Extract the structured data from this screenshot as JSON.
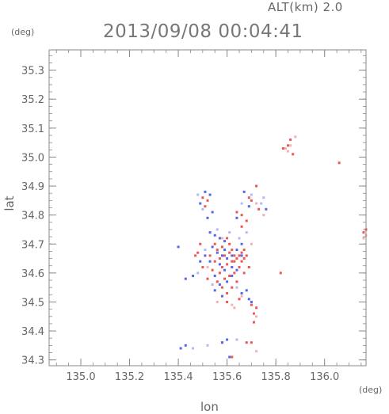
{
  "header": {
    "altitude_label": "ALT(km) 2.0",
    "datetime": "2013/09/08 00:04:41"
  },
  "chart_data": {
    "type": "scatter",
    "title": "2013/09/08 00:04:41",
    "subtitle": "ALT(km) 2.0",
    "xlabel": "lon",
    "ylabel": "lat",
    "x_unit": "(deg)",
    "y_unit": "(deg)",
    "xlim": [
      134.87,
      136.17
    ],
    "ylim": [
      34.28,
      35.37
    ],
    "x_ticks": [
      135.0,
      135.2,
      135.4,
      135.6,
      135.8,
      136.0
    ],
    "x_tick_labels": [
      "135.0",
      "135.2",
      "135.4",
      "135.6",
      "135.8",
      "136.0"
    ],
    "y_ticks": [
      34.3,
      34.4,
      34.5,
      34.6,
      34.7,
      34.8,
      34.9,
      35.0,
      35.1,
      35.2,
      35.3
    ],
    "y_tick_labels": [
      "34.3",
      "34.4",
      "34.5",
      "34.6",
      "34.7",
      "34.8",
      "34.9",
      "35.0",
      "35.1",
      "35.2",
      "35.3"
    ],
    "grid": false,
    "colors": {
      "positive": "#ee5555",
      "positive_light": "#f5b0b0",
      "negative": "#5566ee",
      "negative_light": "#b5b8f5",
      "axis": "#888888"
    },
    "series": [
      {
        "color": "#ee5555",
        "points": [
          [
            135.83,
            35.03
          ],
          [
            135.85,
            35.04
          ],
          [
            135.86,
            35.06
          ],
          [
            135.87,
            35.01
          ],
          [
            136.06,
            34.98
          ],
          [
            135.72,
            34.9
          ],
          [
            135.69,
            34.86
          ],
          [
            135.7,
            34.85
          ],
          [
            135.73,
            34.82
          ],
          [
            135.66,
            34.8
          ],
          [
            135.64,
            34.81
          ],
          [
            135.68,
            34.78
          ],
          [
            135.66,
            34.76
          ],
          [
            135.5,
            34.86
          ],
          [
            135.52,
            34.85
          ],
          [
            135.51,
            34.83
          ],
          [
            135.49,
            34.7
          ],
          [
            135.55,
            34.7
          ],
          [
            135.56,
            34.68
          ],
          [
            135.58,
            34.69
          ],
          [
            135.6,
            34.72
          ],
          [
            135.61,
            34.7
          ],
          [
            135.62,
            34.68
          ],
          [
            135.63,
            34.66
          ],
          [
            135.64,
            34.65
          ],
          [
            135.65,
            34.66
          ],
          [
            135.66,
            34.67
          ],
          [
            135.67,
            34.68
          ],
          [
            135.68,
            34.66
          ],
          [
            135.62,
            34.64
          ],
          [
            135.6,
            34.63
          ],
          [
            135.58,
            34.62
          ],
          [
            135.57,
            34.6
          ],
          [
            135.59,
            34.58
          ],
          [
            135.61,
            34.59
          ],
          [
            135.63,
            34.6
          ],
          [
            135.65,
            34.62
          ],
          [
            135.66,
            34.64
          ],
          [
            135.55,
            34.64
          ],
          [
            135.53,
            34.66
          ],
          [
            135.54,
            34.61
          ],
          [
            135.56,
            34.57
          ],
          [
            135.58,
            34.55
          ],
          [
            135.6,
            34.53
          ],
          [
            135.62,
            34.55
          ],
          [
            135.64,
            34.57
          ],
          [
            135.67,
            34.6
          ],
          [
            135.69,
            34.62
          ],
          [
            135.5,
            34.62
          ],
          [
            135.52,
            34.58
          ],
          [
            135.6,
            34.5
          ],
          [
            135.65,
            34.51
          ],
          [
            135.7,
            34.49
          ],
          [
            135.72,
            34.48
          ],
          [
            135.71,
            34.46
          ],
          [
            135.71,
            34.43
          ],
          [
            135.7,
            34.36
          ],
          [
            135.68,
            34.36
          ],
          [
            135.58,
            34.36
          ],
          [
            135.62,
            34.31
          ],
          [
            135.82,
            34.6
          ],
          [
            135.47,
            34.66
          ],
          [
            135.48,
            34.67
          ],
          [
            135.57,
            34.65
          ],
          [
            135.59,
            34.66
          ],
          [
            135.61,
            34.67
          ],
          [
            135.63,
            34.64
          ],
          [
            135.67,
            34.65
          ],
          [
            136.16,
            34.74
          ],
          [
            136.17,
            34.75
          ]
        ]
      },
      {
        "color": "#f5b0b0",
        "points": [
          [
            135.85,
            35.02
          ],
          [
            135.84,
            35.03
          ],
          [
            135.86,
            35.04
          ],
          [
            135.88,
            35.07
          ],
          [
            136.16,
            34.72
          ],
          [
            136.17,
            34.73
          ],
          [
            135.75,
            34.8
          ],
          [
            135.72,
            34.84
          ],
          [
            135.52,
            34.62
          ],
          [
            135.56,
            34.5
          ],
          [
            135.62,
            34.49
          ],
          [
            135.63,
            34.48
          ],
          [
            135.72,
            34.45
          ],
          [
            135.72,
            34.33
          ],
          [
            135.66,
            34.52
          ],
          [
            135.58,
            34.72
          ],
          [
            135.7,
            34.7
          ]
        ]
      },
      {
        "color": "#5566ee",
        "points": [
          [
            135.51,
            34.88
          ],
          [
            135.53,
            34.87
          ],
          [
            135.49,
            34.84
          ],
          [
            135.54,
            34.81
          ],
          [
            135.52,
            34.79
          ],
          [
            135.67,
            34.88
          ],
          [
            135.69,
            34.83
          ],
          [
            135.76,
            34.82
          ],
          [
            135.64,
            34.79
          ],
          [
            135.53,
            34.74
          ],
          [
            135.55,
            34.73
          ],
          [
            135.57,
            34.72
          ],
          [
            135.59,
            34.71
          ],
          [
            135.54,
            34.69
          ],
          [
            135.56,
            34.67
          ],
          [
            135.58,
            34.66
          ],
          [
            135.6,
            34.65
          ],
          [
            135.62,
            34.66
          ],
          [
            135.64,
            34.68
          ],
          [
            135.66,
            34.7
          ],
          [
            135.59,
            34.61
          ],
          [
            135.57,
            34.63
          ],
          [
            135.55,
            34.59
          ],
          [
            135.57,
            34.56
          ],
          [
            135.6,
            34.57
          ],
          [
            135.62,
            34.59
          ],
          [
            135.64,
            34.61
          ],
          [
            135.53,
            34.64
          ],
          [
            135.51,
            34.66
          ],
          [
            135.49,
            34.64
          ],
          [
            135.43,
            34.58
          ],
          [
            135.46,
            34.59
          ],
          [
            135.55,
            34.54
          ],
          [
            135.58,
            34.52
          ],
          [
            135.66,
            34.53
          ],
          [
            135.68,
            34.54
          ],
          [
            135.69,
            34.51
          ],
          [
            135.7,
            34.5
          ],
          [
            135.41,
            34.34
          ],
          [
            135.43,
            34.35
          ],
          [
            135.58,
            34.36
          ],
          [
            135.6,
            34.37
          ],
          [
            135.61,
            34.31
          ],
          [
            135.4,
            34.69
          ],
          [
            135.62,
            34.62
          ],
          [
            135.59,
            34.68
          ],
          [
            135.66,
            34.66
          ]
        ]
      },
      {
        "color": "#b5b8f5",
        "points": [
          [
            135.48,
            34.87
          ],
          [
            135.5,
            34.82
          ],
          [
            135.66,
            34.84
          ],
          [
            135.7,
            34.87
          ],
          [
            135.74,
            34.84
          ],
          [
            135.75,
            34.86
          ],
          [
            135.51,
            34.68
          ],
          [
            135.65,
            34.72
          ],
          [
            135.68,
            34.74
          ],
          [
            135.48,
            34.6
          ],
          [
            135.54,
            34.56
          ],
          [
            135.64,
            34.55
          ],
          [
            135.56,
            34.75
          ],
          [
            135.61,
            34.74
          ],
          [
            135.46,
            34.34
          ],
          [
            135.52,
            34.35
          ],
          [
            135.64,
            34.37
          ]
        ]
      }
    ]
  }
}
